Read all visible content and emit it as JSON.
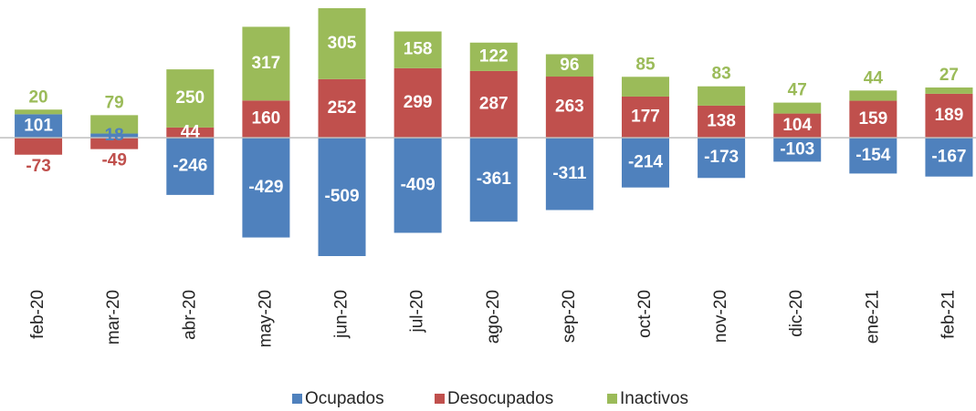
{
  "chart_data": {
    "type": "bar",
    "stacked": true,
    "categories": [
      "feb-20",
      "mar-20",
      "abr-20",
      "may-20",
      "jun-20",
      "jul-20",
      "ago-20",
      "sep-20",
      "oct-20",
      "nov-20",
      "dic-20",
      "ene-21",
      "feb-21"
    ],
    "series": [
      {
        "name": "Ocupados",
        "color": "#4f81bd",
        "values": [
          101,
          18,
          -246,
          -429,
          -509,
          -409,
          -361,
          -311,
          -214,
          -173,
          -103,
          -154,
          -167
        ]
      },
      {
        "name": "Desocupados",
        "color": "#c0504d",
        "values": [
          -73,
          -49,
          44,
          160,
          252,
          299,
          287,
          263,
          177,
          138,
          104,
          159,
          189
        ]
      },
      {
        "name": "Inactivos",
        "color": "#9bbb59",
        "values": [
          20,
          79,
          250,
          317,
          305,
          158,
          122,
          96,
          85,
          83,
          47,
          44,
          27
        ]
      }
    ],
    "legend": "bottom"
  }
}
